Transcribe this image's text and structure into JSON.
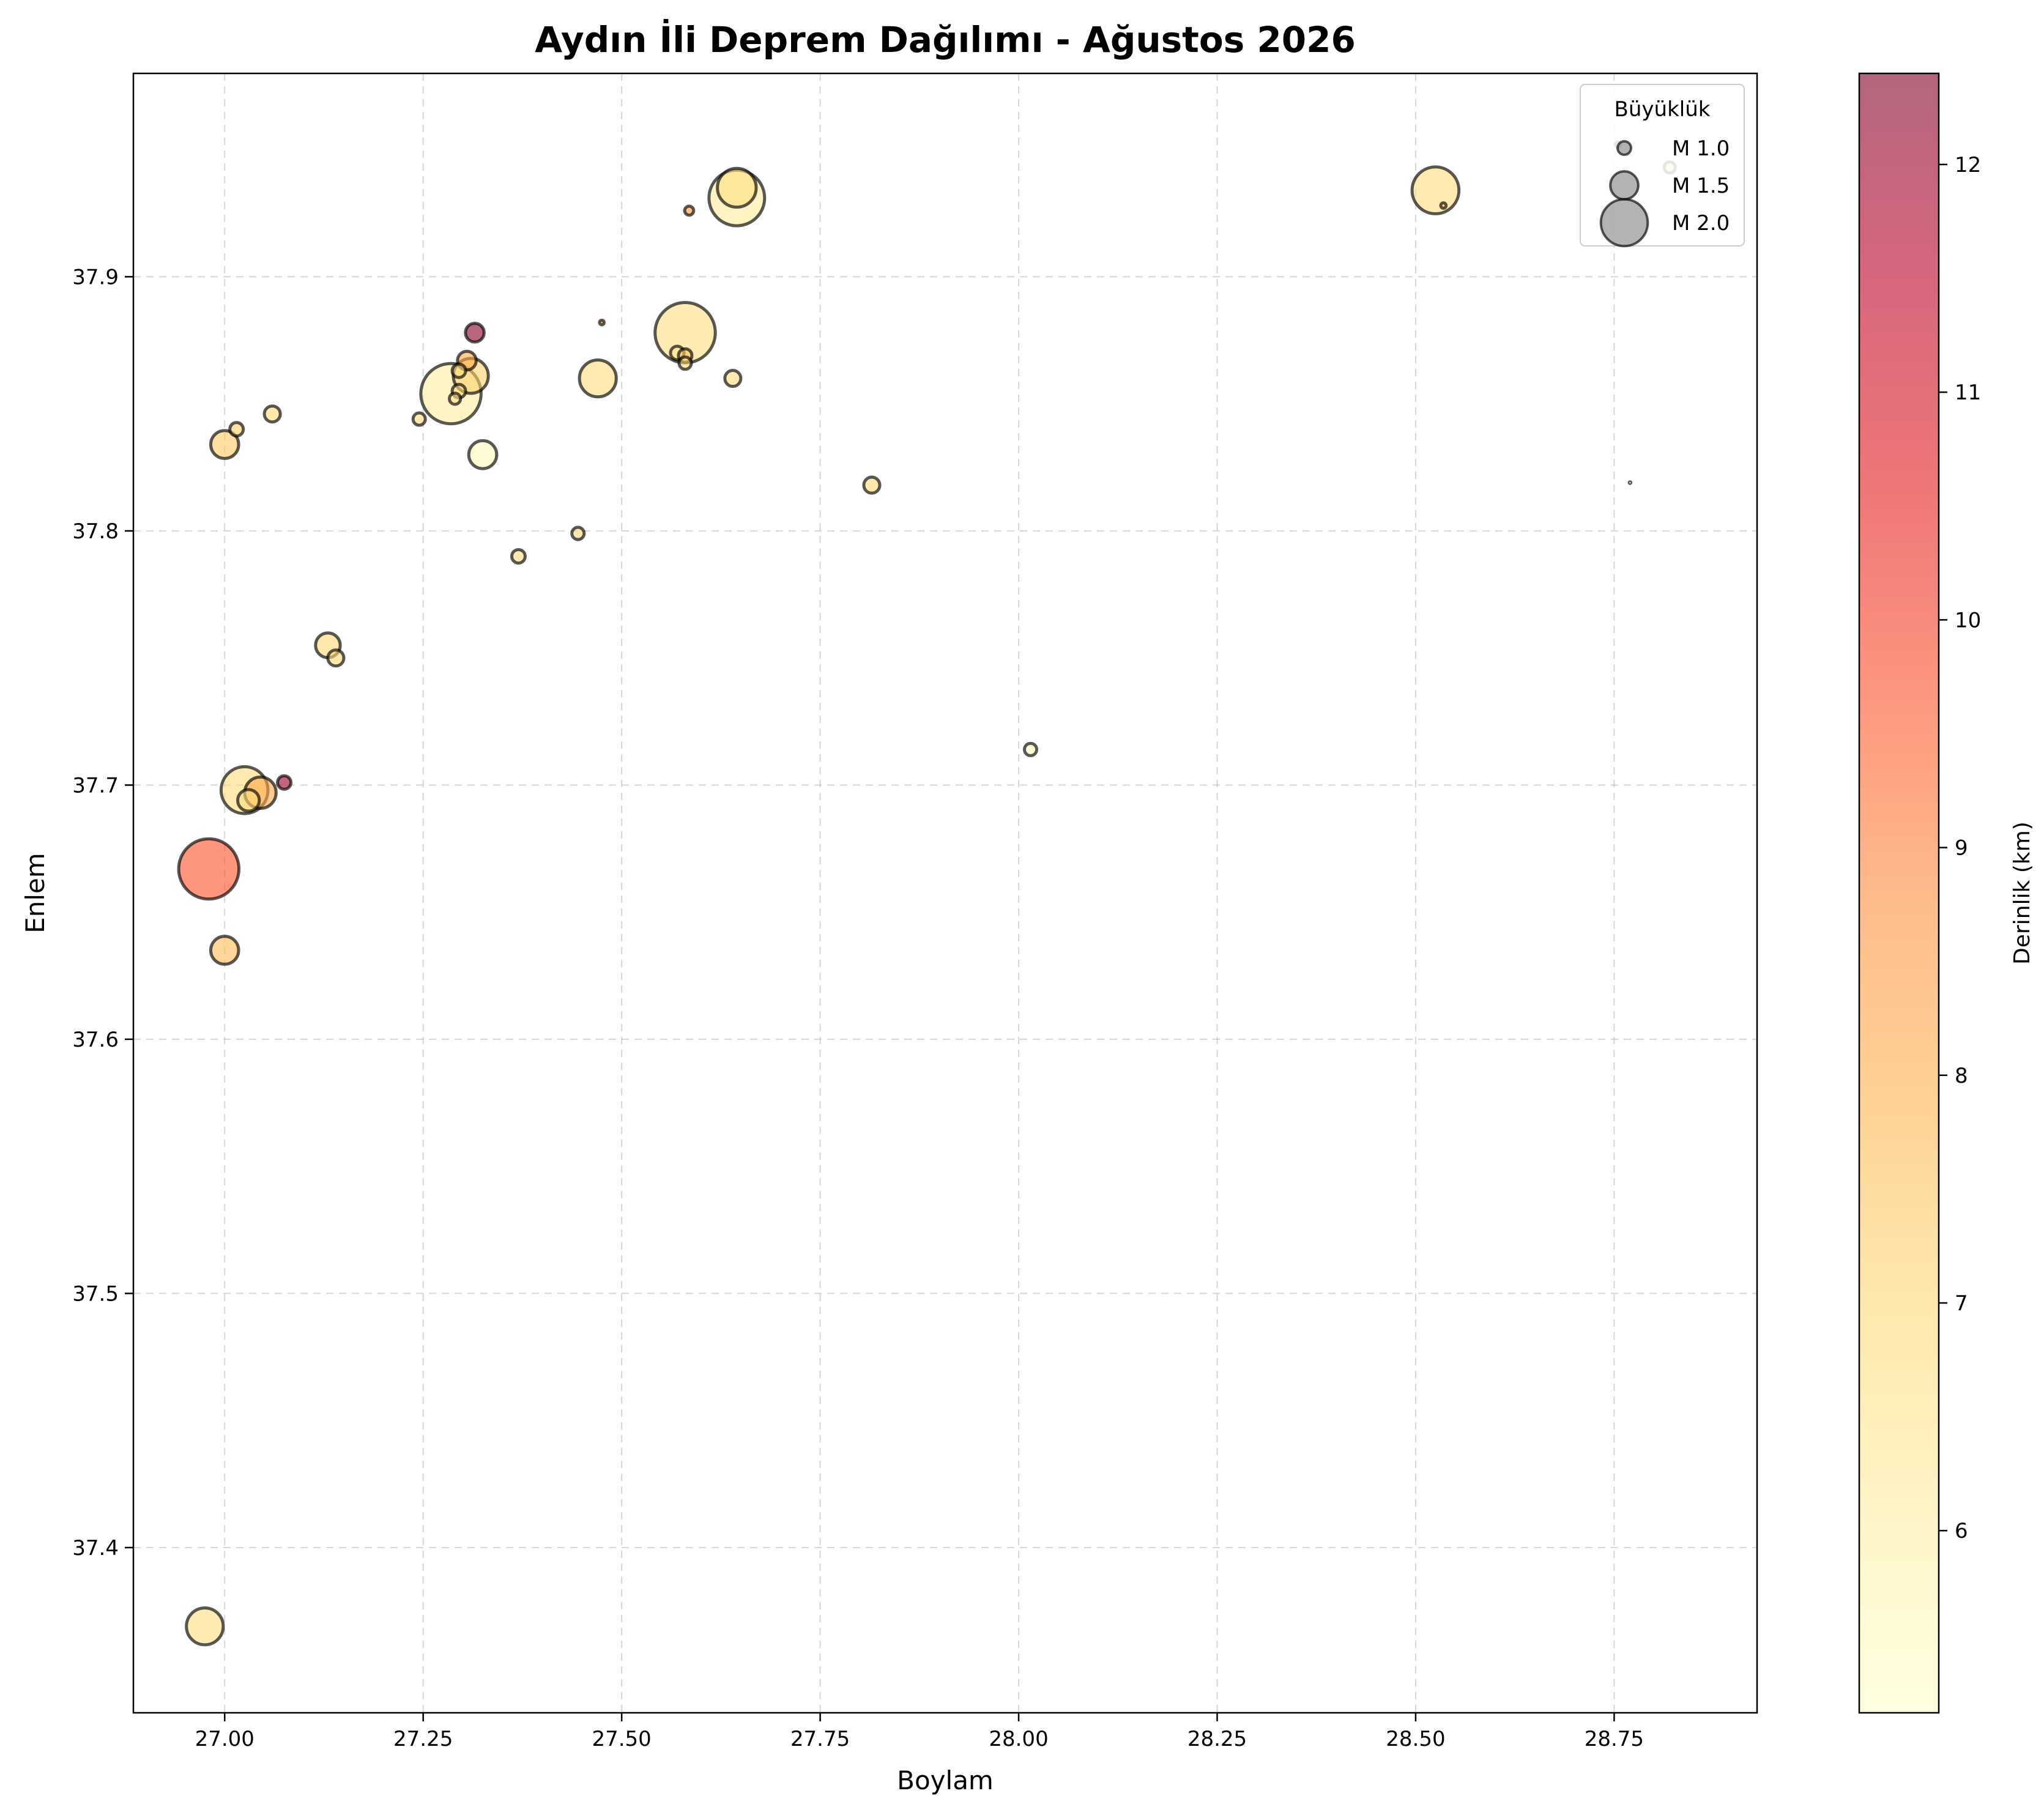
{
  "chart_data": {
    "type": "scatter",
    "title": "Aydın İli Deprem Dağılımı - Ağustos 2026",
    "xlabel": "Boylam",
    "ylabel": "Enlem",
    "xlim": [
      26.885,
      28.93
    ],
    "ylim": [
      37.335,
      37.98
    ],
    "grid": true,
    "xticks": [
      "27.00",
      "27.25",
      "27.50",
      "27.75",
      "28.00",
      "28.25",
      "28.50",
      "28.75"
    ],
    "xtick_values": [
      27.0,
      27.25,
      27.5,
      27.75,
      28.0,
      28.25,
      28.5,
      28.75
    ],
    "yticks": [
      "37.4",
      "37.5",
      "37.6",
      "37.7",
      "37.8",
      "37.9"
    ],
    "ytick_values": [
      37.4,
      37.5,
      37.6,
      37.7,
      37.8,
      37.9
    ],
    "colorbar": {
      "label": "Derinlik (km)",
      "min": 5.2,
      "max": 12.4,
      "ticks": [
        "6",
        "7",
        "8",
        "9",
        "10",
        "11",
        "12"
      ],
      "tick_values": [
        6,
        7,
        8,
        9,
        10,
        11,
        12
      ],
      "colormap": "YlOrRd",
      "alpha": 0.6
    },
    "legend": {
      "title": "Büyüklük",
      "location": "top-right",
      "entries": [
        {
          "label": "M 1.0",
          "magnitude": 1.0
        },
        {
          "label": "M 1.5",
          "magnitude": 1.5
        },
        {
          "label": "M 2.0",
          "magnitude": 2.0
        }
      ]
    },
    "points": [
      {
        "lon": 26.98,
        "lat": 37.667,
        "mag": 2.3,
        "depth": 9.7
      },
      {
        "lon": 26.975,
        "lat": 37.369,
        "mag": 1.75,
        "depth": 6.8
      },
      {
        "lon": 27.0,
        "lat": 37.635,
        "mag": 1.5,
        "depth": 7.7
      },
      {
        "lon": 27.025,
        "lat": 37.698,
        "mag": 2.0,
        "depth": 6.9
      },
      {
        "lon": 27.045,
        "lat": 37.697,
        "mag": 1.6,
        "depth": 8.2
      },
      {
        "lon": 27.03,
        "lat": 37.694,
        "mag": 1.3,
        "depth": 6.8
      },
      {
        "lon": 27.075,
        "lat": 37.701,
        "mag": 1.0,
        "depth": 12.0
      },
      {
        "lon": 27.0,
        "lat": 37.834,
        "mag": 1.5,
        "depth": 7.4
      },
      {
        "lon": 27.015,
        "lat": 37.84,
        "mag": 1.0,
        "depth": 7.2
      },
      {
        "lon": 27.06,
        "lat": 37.846,
        "mag": 1.1,
        "depth": 7.0
      },
      {
        "lon": 27.13,
        "lat": 37.755,
        "mag": 1.4,
        "depth": 7.0
      },
      {
        "lon": 27.14,
        "lat": 37.75,
        "mag": 1.1,
        "depth": 7.0
      },
      {
        "lon": 27.245,
        "lat": 37.844,
        "mag": 0.95,
        "depth": 6.9
      },
      {
        "lon": 27.285,
        "lat": 37.854,
        "mag": 2.3,
        "depth": 6.1
      },
      {
        "lon": 27.31,
        "lat": 37.861,
        "mag": 1.7,
        "depth": 7.2
      },
      {
        "lon": 27.305,
        "lat": 37.867,
        "mag": 1.2,
        "depth": 8.1
      },
      {
        "lon": 27.315,
        "lat": 37.878,
        "mag": 1.2,
        "depth": 12.3
      },
      {
        "lon": 27.295,
        "lat": 37.863,
        "mag": 1.0,
        "depth": 6.8
      },
      {
        "lon": 27.295,
        "lat": 37.855,
        "mag": 1.0,
        "depth": 7.0
      },
      {
        "lon": 27.29,
        "lat": 37.852,
        "mag": 0.9,
        "depth": 6.5
      },
      {
        "lon": 27.325,
        "lat": 37.83,
        "mag": 1.5,
        "depth": 5.6
      },
      {
        "lon": 27.37,
        "lat": 37.79,
        "mag": 1.0,
        "depth": 7.0
      },
      {
        "lon": 27.445,
        "lat": 37.799,
        "mag": 0.95,
        "depth": 7.0
      },
      {
        "lon": 27.47,
        "lat": 37.86,
        "mag": 1.75,
        "depth": 6.9
      },
      {
        "lon": 27.475,
        "lat": 37.882,
        "mag": 0.55,
        "depth": 8.2
      },
      {
        "lon": 27.58,
        "lat": 37.878,
        "mag": 2.3,
        "depth": 6.8
      },
      {
        "lon": 27.57,
        "lat": 37.87,
        "mag": 1.0,
        "depth": 6.5
      },
      {
        "lon": 27.58,
        "lat": 37.866,
        "mag": 0.95,
        "depth": 6.9
      },
      {
        "lon": 27.58,
        "lat": 37.869,
        "mag": 1.0,
        "depth": 7.5
      },
      {
        "lon": 27.585,
        "lat": 37.926,
        "mag": 0.8,
        "depth": 8.5
      },
      {
        "lon": 27.645,
        "lat": 37.931,
        "mag": 2.2,
        "depth": 6.2
      },
      {
        "lon": 27.645,
        "lat": 37.935,
        "mag": 1.8,
        "depth": 6.8
      },
      {
        "lon": 27.64,
        "lat": 37.86,
        "mag": 1.1,
        "depth": 6.9
      },
      {
        "lon": 27.815,
        "lat": 37.818,
        "mag": 1.1,
        "depth": 7.0
      },
      {
        "lon": 28.015,
        "lat": 37.714,
        "mag": 0.95,
        "depth": 5.6
      },
      {
        "lon": 28.525,
        "lat": 37.934,
        "mag": 2.0,
        "depth": 6.9
      },
      {
        "lon": 28.535,
        "lat": 37.928,
        "mag": 0.6,
        "depth": 7.3
      },
      {
        "lon": 28.755,
        "lat": 37.952,
        "mag": 0.6,
        "depth": 5.6
      },
      {
        "lon": 28.82,
        "lat": 37.943,
        "mag": 0.9,
        "depth": 6.9
      },
      {
        "lon": 28.77,
        "lat": 37.819,
        "mag": 0.3,
        "depth": 7.4
      }
    ]
  }
}
